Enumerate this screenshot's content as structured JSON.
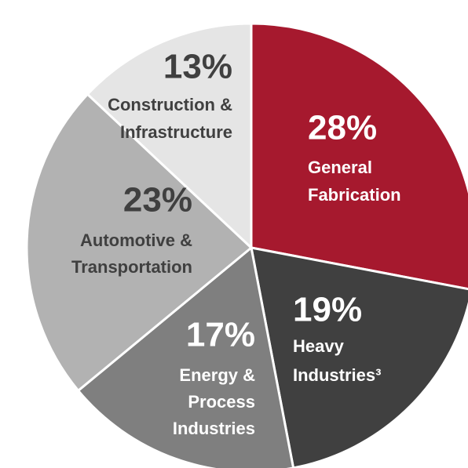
{
  "chart_data": {
    "type": "pie",
    "categories": [
      [
        "General",
        "Fabrication"
      ],
      [
        "Heavy",
        "Industries³"
      ],
      [
        "Energy &",
        "Process",
        "Industries"
      ],
      [
        "Automotive &",
        "Transportation"
      ],
      [
        "Construction &",
        "Infrastructure"
      ]
    ],
    "values": [
      28,
      19,
      17,
      23,
      13
    ],
    "value_labels": [
      "28%",
      "19%",
      "17%",
      "23%",
      "13%"
    ],
    "colors": [
      "#a6192e",
      "#404040",
      "#7f7f7f",
      "#b2b2b2",
      "#e5e5e5"
    ]
  }
}
